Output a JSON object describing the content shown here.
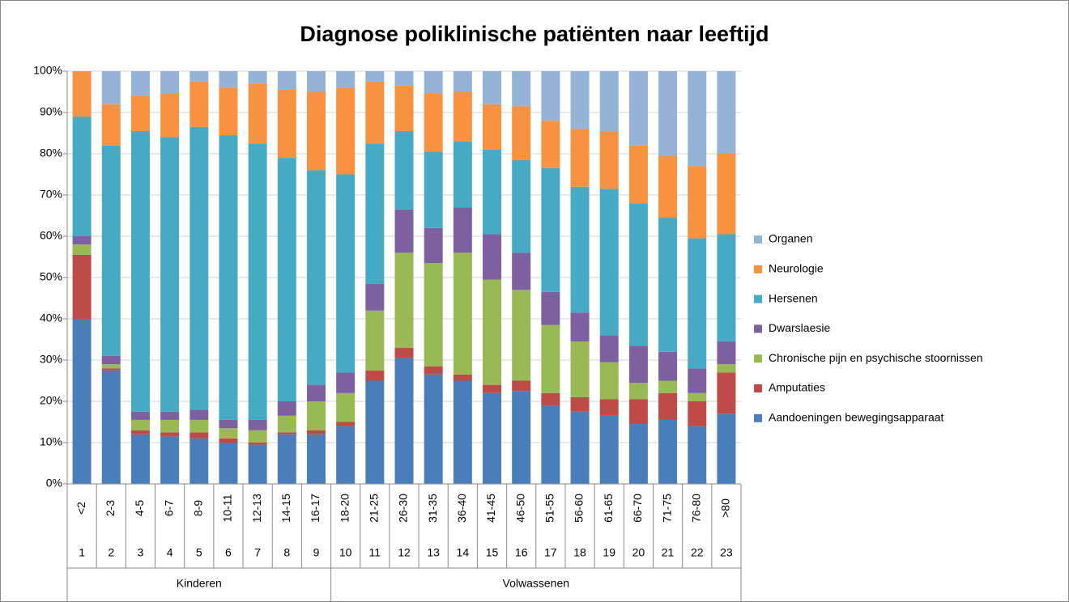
{
  "chart_data": {
    "type": "stacked_bar_100",
    "title": "Diagnose poliklinische patiënten naar leeftijd",
    "categories": [
      "<2",
      "2-3",
      "4-5",
      "6-7",
      "8-9",
      "10-11",
      "12-13",
      "14-15",
      "16-17",
      "18-20",
      "21-25",
      "26-30",
      "31-35",
      "36-40",
      "41-45",
      "46-50",
      "51-55",
      "56-60",
      "61-65",
      "66-70",
      "71-75",
      "76-80",
      ">80"
    ],
    "category_numbers": [
      1,
      2,
      3,
      4,
      5,
      6,
      7,
      8,
      9,
      10,
      11,
      12,
      13,
      14,
      15,
      16,
      17,
      18,
      19,
      20,
      21,
      22,
      23
    ],
    "category_groups": [
      "Kinderen",
      "Kinderen",
      "Kinderen",
      "Kinderen",
      "Kinderen",
      "Kinderen",
      "Kinderen",
      "Kinderen",
      "Kinderen",
      "Volwassenen",
      "Volwassenen",
      "Volwassenen",
      "Volwassenen",
      "Volwassenen",
      "Volwassenen",
      "Volwassenen",
      "Volwassenen",
      "Volwassenen",
      "Volwassenen",
      "Volwassenen",
      "Volwassenen",
      "Volwassenen",
      "Volwassenen"
    ],
    "series": [
      {
        "name": "Aandoeningen bewegingsapparaat",
        "color": "#4a7ebb",
        "values": [
          40,
          27.5,
          12,
          11.5,
          11,
          10,
          9.5,
          12,
          12,
          14,
          25,
          30.5,
          26.5,
          25,
          22,
          22.5,
          19,
          17.5,
          16.5,
          14.5,
          15.5,
          14,
          17
        ]
      },
      {
        "name": "Amputaties",
        "color": "#be4b48",
        "values": [
          15.5,
          0.5,
          1,
          1,
          1.5,
          1,
          0.5,
          0.5,
          1,
          1,
          2.5,
          2.5,
          2,
          1.5,
          2,
          2.5,
          3,
          3.5,
          4,
          6,
          6.5,
          6,
          10
        ]
      },
      {
        "name": "Chronische pijn en psychische stoornissen",
        "color": "#98b954",
        "values": [
          2.5,
          1,
          2.5,
          3,
          3,
          2.5,
          3,
          4,
          7,
          7,
          14.5,
          23,
          25,
          29.5,
          25.5,
          22,
          16.5,
          13.5,
          9,
          4,
          3,
          2,
          2
        ]
      },
      {
        "name": "Dwarslaesie",
        "color": "#7d60a0",
        "values": [
          2,
          2,
          2,
          2,
          2.5,
          2,
          2.5,
          3.5,
          4,
          5,
          6.5,
          10.5,
          8.5,
          11,
          11,
          9,
          8,
          7,
          6.5,
          9,
          7,
          6,
          5.5
        ]
      },
      {
        "name": "Hersenen",
        "color": "#46aac5",
        "values": [
          29,
          51,
          68,
          66.5,
          68.5,
          69,
          67,
          59,
          52,
          48,
          34,
          19,
          18.5,
          16,
          20.5,
          22.5,
          30,
          30.5,
          35.5,
          34.5,
          32.5,
          31.5,
          26
        ]
      },
      {
        "name": "Neurologie",
        "color": "#f69240",
        "values": [
          11,
          10,
          8.5,
          10.5,
          11,
          11.5,
          14.5,
          16.5,
          19,
          21,
          15,
          11,
          14,
          12,
          11,
          13,
          11.5,
          14,
          14,
          14,
          15,
          17.5,
          19.5
        ]
      },
      {
        "name": "Organen",
        "color": "#95b3d7",
        "values": [
          0,
          8,
          6,
          5.5,
          2.5,
          4,
          3,
          4.5,
          5,
          4,
          2.5,
          3.5,
          5.5,
          5,
          8,
          8.5,
          12,
          14,
          14.5,
          18,
          20.5,
          23,
          20
        ]
      }
    ],
    "ylim": [
      0,
      100
    ],
    "yticks": [
      {
        "value": 0,
        "label": "0%"
      },
      {
        "value": 10,
        "label": "10%"
      },
      {
        "value": 20,
        "label": "20%"
      },
      {
        "value": 30,
        "label": "30%"
      },
      {
        "value": 40,
        "label": "40%"
      },
      {
        "value": 50,
        "label": "50%"
      },
      {
        "value": 60,
        "label": "60%"
      },
      {
        "value": 70,
        "label": "70%"
      },
      {
        "value": 80,
        "label": "80%"
      },
      {
        "value": 90,
        "label": "90%"
      },
      {
        "value": 100,
        "label": "100%"
      }
    ],
    "grid": true,
    "legend": "right"
  }
}
